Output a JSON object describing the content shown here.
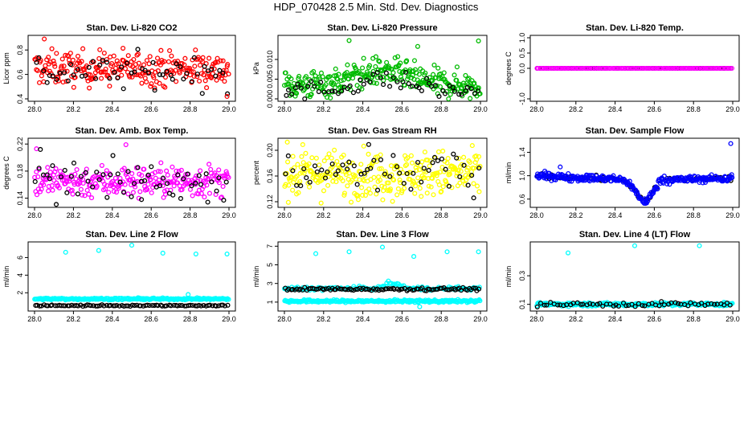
{
  "title": "HDP_070428  2.5 Min. Std. Dev. Diagnostics",
  "chart_data": [
    {
      "type": "scatter",
      "title": "Stan. Dev. Li-820 CO2",
      "ylabel": "Licor ppm",
      "xlim": [
        28.0,
        29.0
      ],
      "ylim": [
        0.4,
        0.9
      ],
      "xticks": [
        "28.0",
        "28.2",
        "28.4",
        "28.6",
        "28.8",
        "29.0"
      ],
      "yticks": [
        "0.4",
        "0.6",
        "0.8"
      ],
      "ytick_values": [
        0.4,
        0.6,
        0.8
      ],
      "series": [
        {
          "name": "main",
          "color": "#ff0000",
          "base": 0.65,
          "spread": 0.07,
          "n": 260
        },
        {
          "name": "black",
          "color": "#000000",
          "base": 0.62,
          "spread": 0.07,
          "n": 55
        }
      ],
      "outliers": [
        {
          "x": 28.05,
          "y": 0.89,
          "color": "#ff0000"
        },
        {
          "x": 28.99,
          "y": 0.42,
          "color": "#ff0000"
        }
      ]
    },
    {
      "type": "scatter",
      "title": "Stan. Dev. Li-820 Pressure",
      "ylabel": "kPa",
      "xlim": [
        28.0,
        29.0
      ],
      "ylim": [
        0.0,
        0.0155
      ],
      "xticks": [
        "28.0",
        "28.2",
        "28.4",
        "28.6",
        "28.8",
        "29.0"
      ],
      "yticks": [
        "0.000",
        "0.005",
        "0.010"
      ],
      "ytick_values": [
        0.0,
        0.005,
        0.01
      ],
      "series": [
        {
          "name": "main",
          "color": "#00bb00",
          "base": 0.0035,
          "spread": 0.0018,
          "n": 300,
          "hump": 0.0035
        },
        {
          "name": "black",
          "color": "#000000",
          "base": 0.002,
          "spread": 0.0012,
          "n": 60,
          "hump": 0.003
        }
      ],
      "outliers": [
        {
          "x": 28.33,
          "y": 0.0148,
          "color": "#00bb00"
        },
        {
          "x": 28.68,
          "y": 0.0133,
          "color": "#00bb00"
        },
        {
          "x": 28.99,
          "y": 0.0147,
          "color": "#00bb00"
        }
      ]
    },
    {
      "type": "scatter",
      "title": "Stan. Dev. Li-820 Temp.",
      "ylabel": "degrees C",
      "xlim": [
        28.0,
        29.0
      ],
      "ylim": [
        -1.0,
        1.0
      ],
      "xticks": [
        "28.0",
        "28.2",
        "28.4",
        "28.6",
        "28.8",
        "29.0"
      ],
      "yticks": [
        "-1.0",
        "0.0",
        "0.5",
        "1.0"
      ],
      "ytick_values": [
        -1.0,
        0.0,
        0.5,
        1.0
      ],
      "series": [
        {
          "name": "black",
          "color": "#000000",
          "base": 0.0,
          "spread": 0.0,
          "n": 70
        },
        {
          "name": "main",
          "color": "#ff00ff",
          "base": 0.0,
          "spread": 0.0,
          "n": 140
        }
      ],
      "outliers": []
    },
    {
      "type": "scatter",
      "title": "Stan. Dev. Amb. Box Temp.",
      "ylabel": "degrees C",
      "xlim": [
        28.0,
        29.0
      ],
      "ylim": [
        0.13,
        0.225
      ],
      "xticks": [
        "28.0",
        "28.2",
        "28.4",
        "28.6",
        "28.8",
        "29.0"
      ],
      "yticks": [
        "0.14",
        "0.18",
        "0.22"
      ],
      "ytick_values": [
        0.14,
        0.18,
        0.22
      ],
      "series": [
        {
          "name": "main",
          "color": "#ff00ff",
          "base": 0.165,
          "spread": 0.012,
          "n": 260
        },
        {
          "name": "black",
          "color": "#000000",
          "base": 0.165,
          "spread": 0.013,
          "n": 55
        }
      ],
      "outliers": [
        {
          "x": 28.01,
          "y": 0.213,
          "color": "#ff00ff"
        },
        {
          "x": 28.47,
          "y": 0.219,
          "color": "#ff00ff"
        },
        {
          "x": 28.55,
          "y": 0.138,
          "color": "#000000"
        },
        {
          "x": 28.03,
          "y": 0.212,
          "color": "#000000"
        }
      ]
    },
    {
      "type": "scatter",
      "title": "Stan. Dev. Gas Stream RH",
      "ylabel": "percent",
      "xlim": [
        28.0,
        29.0
      ],
      "ylim": [
        0.115,
        0.215
      ],
      "xticks": [
        "28.0",
        "28.2",
        "28.4",
        "28.6",
        "28.8",
        "29.0"
      ],
      "yticks": [
        "0.12",
        "0.16",
        "0.20"
      ],
      "ytick_values": [
        0.12,
        0.16,
        0.2
      ],
      "series": [
        {
          "name": "main",
          "color": "#ffff00",
          "base": 0.163,
          "spread": 0.018,
          "n": 300
        },
        {
          "name": "black",
          "color": "#000000",
          "base": 0.165,
          "spread": 0.015,
          "n": 55
        }
      ],
      "outliers": [
        {
          "x": 28.43,
          "y": 0.209,
          "color": "#000000"
        },
        {
          "x": 28.02,
          "y": 0.119,
          "color": "#ffff00"
        }
      ]
    },
    {
      "type": "scatter",
      "title": "Stan. Dev. Sample Flow",
      "ylabel": "ml/min",
      "xlim": [
        28.0,
        29.0
      ],
      "ylim": [
        0.5,
        1.6
      ],
      "xticks": [
        "28.0",
        "28.2",
        "28.4",
        "28.6",
        "28.8",
        "29.0"
      ],
      "yticks": [
        "0.6",
        "1.0",
        "1.4"
      ],
      "ytick_values": [
        0.6,
        1.0,
        1.4
      ],
      "series": [
        {
          "name": "black",
          "color": "#000000",
          "base": 1.0,
          "spread": 0.02,
          "n": 80,
          "dip": true
        },
        {
          "name": "main",
          "color": "#0000ff",
          "base": 1.0,
          "spread": 0.03,
          "n": 300,
          "dip": true
        }
      ],
      "outliers": [
        {
          "x": 28.99,
          "y": 1.55,
          "color": "#0000ff"
        },
        {
          "x": 28.12,
          "y": 1.15,
          "color": "#0000ff"
        },
        {
          "x": 28.56,
          "y": 0.55,
          "color": "#0000ff"
        }
      ]
    },
    {
      "type": "scatter",
      "title": "Stan. Dev. Line 2 Flow",
      "ylabel": "ml/min",
      "xlim": [
        28.0,
        29.0
      ],
      "ylim": [
        0.2,
        7.5
      ],
      "xticks": [
        "28.0",
        "28.2",
        "28.4",
        "28.6",
        "28.8",
        "29.0"
      ],
      "yticks": [
        "2",
        "4",
        "6"
      ],
      "ytick_values": [
        2,
        4,
        6
      ],
      "series": [
        {
          "name": "main",
          "color": "#00ffff",
          "base": 1.3,
          "spread": 0.05,
          "n": 260
        },
        {
          "name": "black",
          "color": "#000000",
          "base": 0.55,
          "spread": 0.04,
          "n": 90
        }
      ],
      "outliers": [
        {
          "x": 28.16,
          "y": 6.6,
          "color": "#00ffff"
        },
        {
          "x": 28.33,
          "y": 6.8,
          "color": "#00ffff"
        },
        {
          "x": 28.5,
          "y": 7.4,
          "color": "#00ffff"
        },
        {
          "x": 28.66,
          "y": 6.5,
          "color": "#00ffff"
        },
        {
          "x": 28.83,
          "y": 6.4,
          "color": "#00ffff"
        },
        {
          "x": 28.99,
          "y": 6.4,
          "color": "#00ffff"
        },
        {
          "x": 28.79,
          "y": 1.8,
          "color": "#00ffff"
        }
      ]
    },
    {
      "type": "scatter",
      "title": "Stan. Dev. Line 3 Flow",
      "ylabel": "ml/min",
      "xlim": [
        28.0,
        29.0
      ],
      "ylim": [
        0.3,
        7.2
      ],
      "xticks": [
        "28.0",
        "28.2",
        "28.4",
        "28.6",
        "28.8",
        "29.0"
      ],
      "yticks": [
        "1",
        "3",
        "5",
        "7"
      ],
      "ytick_values": [
        1,
        3,
        5,
        7
      ],
      "series": [
        {
          "name": "main",
          "color": "#00ffff",
          "base": 1.1,
          "spread": 0.07,
          "n": 260
        },
        {
          "name": "main2",
          "color": "#00ffff",
          "base": 2.45,
          "spread": 0.1,
          "n": 140,
          "hump2": true
        },
        {
          "name": "black",
          "color": "#000000",
          "base": 2.4,
          "spread": 0.08,
          "n": 100
        }
      ],
      "outliers": [
        {
          "x": 28.16,
          "y": 6.2,
          "color": "#00ffff"
        },
        {
          "x": 28.33,
          "y": 6.4,
          "color": "#00ffff"
        },
        {
          "x": 28.5,
          "y": 6.9,
          "color": "#00ffff"
        },
        {
          "x": 28.66,
          "y": 5.9,
          "color": "#00ffff"
        },
        {
          "x": 28.83,
          "y": 6.4,
          "color": "#00ffff"
        },
        {
          "x": 28.99,
          "y": 6.4,
          "color": "#00ffff"
        },
        {
          "x": 28.69,
          "y": 0.5,
          "color": "#00ffff"
        }
      ]
    },
    {
      "type": "scatter",
      "title": "Stan. Dev. Line 4 (LT) Flow",
      "ylabel": "ml/min",
      "xlim": [
        28.0,
        29.0
      ],
      "ylim": [
        0.07,
        0.52
      ],
      "xticks": [
        "28.0",
        "28.2",
        "28.4",
        "28.6",
        "28.8",
        "29.0"
      ],
      "yticks": [
        "0.1",
        "0.3"
      ],
      "ytick_values": [
        0.1,
        0.3
      ],
      "series": [
        {
          "name": "main",
          "color": "#00ffff",
          "base": 0.1,
          "spread": 0.006,
          "n": 260
        },
        {
          "name": "black",
          "color": "#000000",
          "base": 0.1,
          "spread": 0.008,
          "n": 60
        }
      ],
      "outliers": [
        {
          "x": 28.16,
          "y": 0.46,
          "color": "#00ffff"
        },
        {
          "x": 28.5,
          "y": 0.51,
          "color": "#00ffff"
        },
        {
          "x": 28.83,
          "y": 0.51,
          "color": "#00ffff"
        }
      ]
    }
  ]
}
